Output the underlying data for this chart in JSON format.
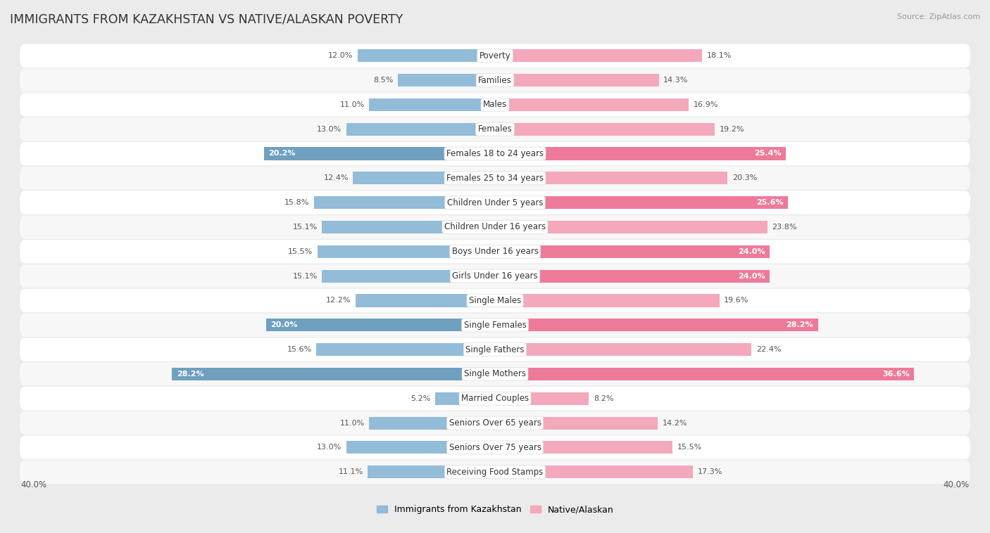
{
  "title": "IMMIGRANTS FROM KAZAKHSTAN VS NATIVE/ALASKAN POVERTY",
  "source": "Source: ZipAtlas.com",
  "categories": [
    "Poverty",
    "Families",
    "Males",
    "Females",
    "Females 18 to 24 years",
    "Females 25 to 34 years",
    "Children Under 5 years",
    "Children Under 16 years",
    "Boys Under 16 years",
    "Girls Under 16 years",
    "Single Males",
    "Single Females",
    "Single Fathers",
    "Single Mothers",
    "Married Couples",
    "Seniors Over 65 years",
    "Seniors Over 75 years",
    "Receiving Food Stamps"
  ],
  "kazakhstan_values": [
    12.0,
    8.5,
    11.0,
    13.0,
    20.2,
    12.4,
    15.8,
    15.1,
    15.5,
    15.1,
    12.2,
    20.0,
    15.6,
    28.2,
    5.2,
    11.0,
    13.0,
    11.1
  ],
  "native_values": [
    18.1,
    14.3,
    16.9,
    19.2,
    25.4,
    20.3,
    25.6,
    23.8,
    24.0,
    24.0,
    19.6,
    28.2,
    22.4,
    36.6,
    8.2,
    14.2,
    15.5,
    17.3
  ],
  "blue_color": "#92bcd8",
  "pink_color": "#f4a8bc",
  "blue_highlight_color": "#6fa0c0",
  "pink_highlight_color": "#ee7a9a",
  "bg_color": "#ebebeb",
  "row_color_odd": "#f7f7f7",
  "row_color_even": "#ffffff",
  "axis_max": 40.0,
  "legend_label_blue": "Immigrants from Kazakhstan",
  "legend_label_pink": "Native/Alaskan",
  "bar_height": 0.52,
  "title_fontsize": 12.5,
  "cat_fontsize": 8.5,
  "value_fontsize": 8.0,
  "blue_highlight_indices": [
    4,
    11,
    13
  ],
  "pink_highlight_indices": [
    4,
    6,
    8,
    9,
    11,
    13
  ]
}
